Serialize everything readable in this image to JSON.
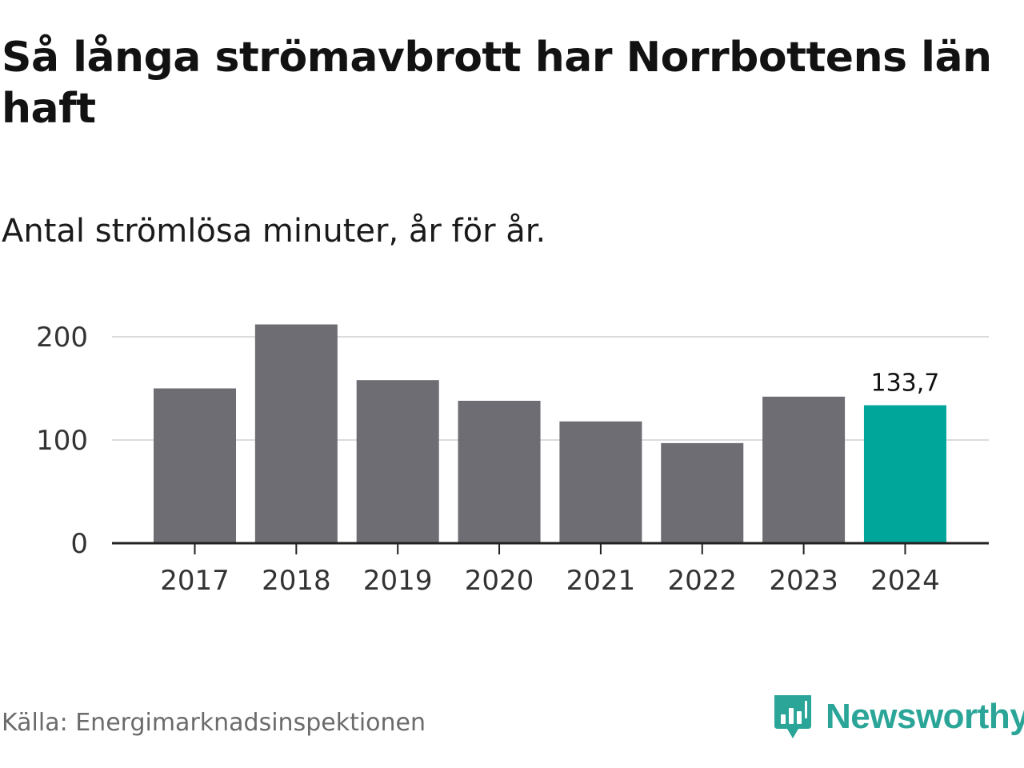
{
  "header": {
    "title": "Så långa strömavbrott har Norrbottens län haft",
    "subtitle": "Antal strömlösa minuter, år för år."
  },
  "chart_data": {
    "type": "bar",
    "title": "Så långa strömavbrott har Norrbottens län haft",
    "subtitle": "Antal strömlösa minuter, år för år.",
    "xlabel": "",
    "ylabel": "",
    "categories": [
      "2017",
      "2018",
      "2019",
      "2020",
      "2021",
      "2022",
      "2023",
      "2024"
    ],
    "values": [
      150,
      212,
      158,
      138,
      118,
      97,
      142,
      133.7
    ],
    "ylim": [
      0,
      200
    ],
    "yticks": [
      0,
      100,
      200
    ],
    "ytick_labels": [
      "0",
      "100",
      "200"
    ],
    "grid": true,
    "highlight_index": 7,
    "highlight_label": "133,7",
    "colors": {
      "bar": "#6e6d73",
      "highlight": "#00a69a",
      "grid": "#dcdcdc",
      "axis": "#222222",
      "tick_text": "#333333"
    }
  },
  "footer": {
    "source": "Källa: Energimarknadsinspektionen",
    "brand": "Newsworthy",
    "brand_icon": "newsworthy-logo-icon",
    "brand_color": "#2aa598"
  }
}
